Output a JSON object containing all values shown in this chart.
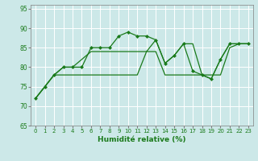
{
  "xlabel": "Humidité relative (%)",
  "background_color": "#cce8e8",
  "line_color": "#1a7a1a",
  "ylim": [
    65,
    96
  ],
  "xlim": [
    -0.5,
    23.5
  ],
  "yticks": [
    65,
    70,
    75,
    80,
    85,
    90,
    95
  ],
  "xticks": [
    0,
    1,
    2,
    3,
    4,
    5,
    6,
    7,
    8,
    9,
    10,
    11,
    12,
    13,
    14,
    15,
    16,
    17,
    18,
    19,
    20,
    21,
    22,
    23
  ],
  "series1_x": [
    0,
    1,
    2,
    3,
    4,
    5,
    6,
    7,
    8,
    9,
    10,
    11,
    12,
    13,
    14,
    15,
    16,
    17,
    18,
    19,
    20,
    21,
    22,
    23
  ],
  "series1_y": [
    72,
    75,
    78,
    80,
    80,
    80,
    85,
    85,
    85,
    88,
    89,
    88,
    88,
    87,
    81,
    83,
    86,
    79,
    78,
    77,
    82,
    86,
    86,
    86
  ],
  "series2_x": [
    0,
    1,
    2,
    3,
    4,
    5,
    6,
    7,
    8,
    9,
    10,
    11,
    12,
    13,
    14,
    15,
    16,
    17,
    18,
    19,
    20,
    21,
    22,
    23
  ],
  "series2_y": [
    72,
    75,
    78,
    78,
    78,
    78,
    78,
    78,
    78,
    78,
    78,
    78,
    84,
    84,
    78,
    78,
    78,
    78,
    78,
    78,
    78,
    85,
    86,
    86
  ],
  "series3_x": [
    0,
    1,
    2,
    3,
    4,
    5,
    6,
    7,
    8,
    9,
    10,
    11,
    12,
    13,
    14,
    15,
    16,
    17,
    18,
    19,
    20,
    21,
    22,
    23
  ],
  "series3_y": [
    72,
    75,
    78,
    80,
    80,
    82,
    84,
    84,
    84,
    84,
    84,
    84,
    84,
    87,
    81,
    83,
    86,
    86,
    78,
    77,
    82,
    86,
    86,
    86
  ]
}
